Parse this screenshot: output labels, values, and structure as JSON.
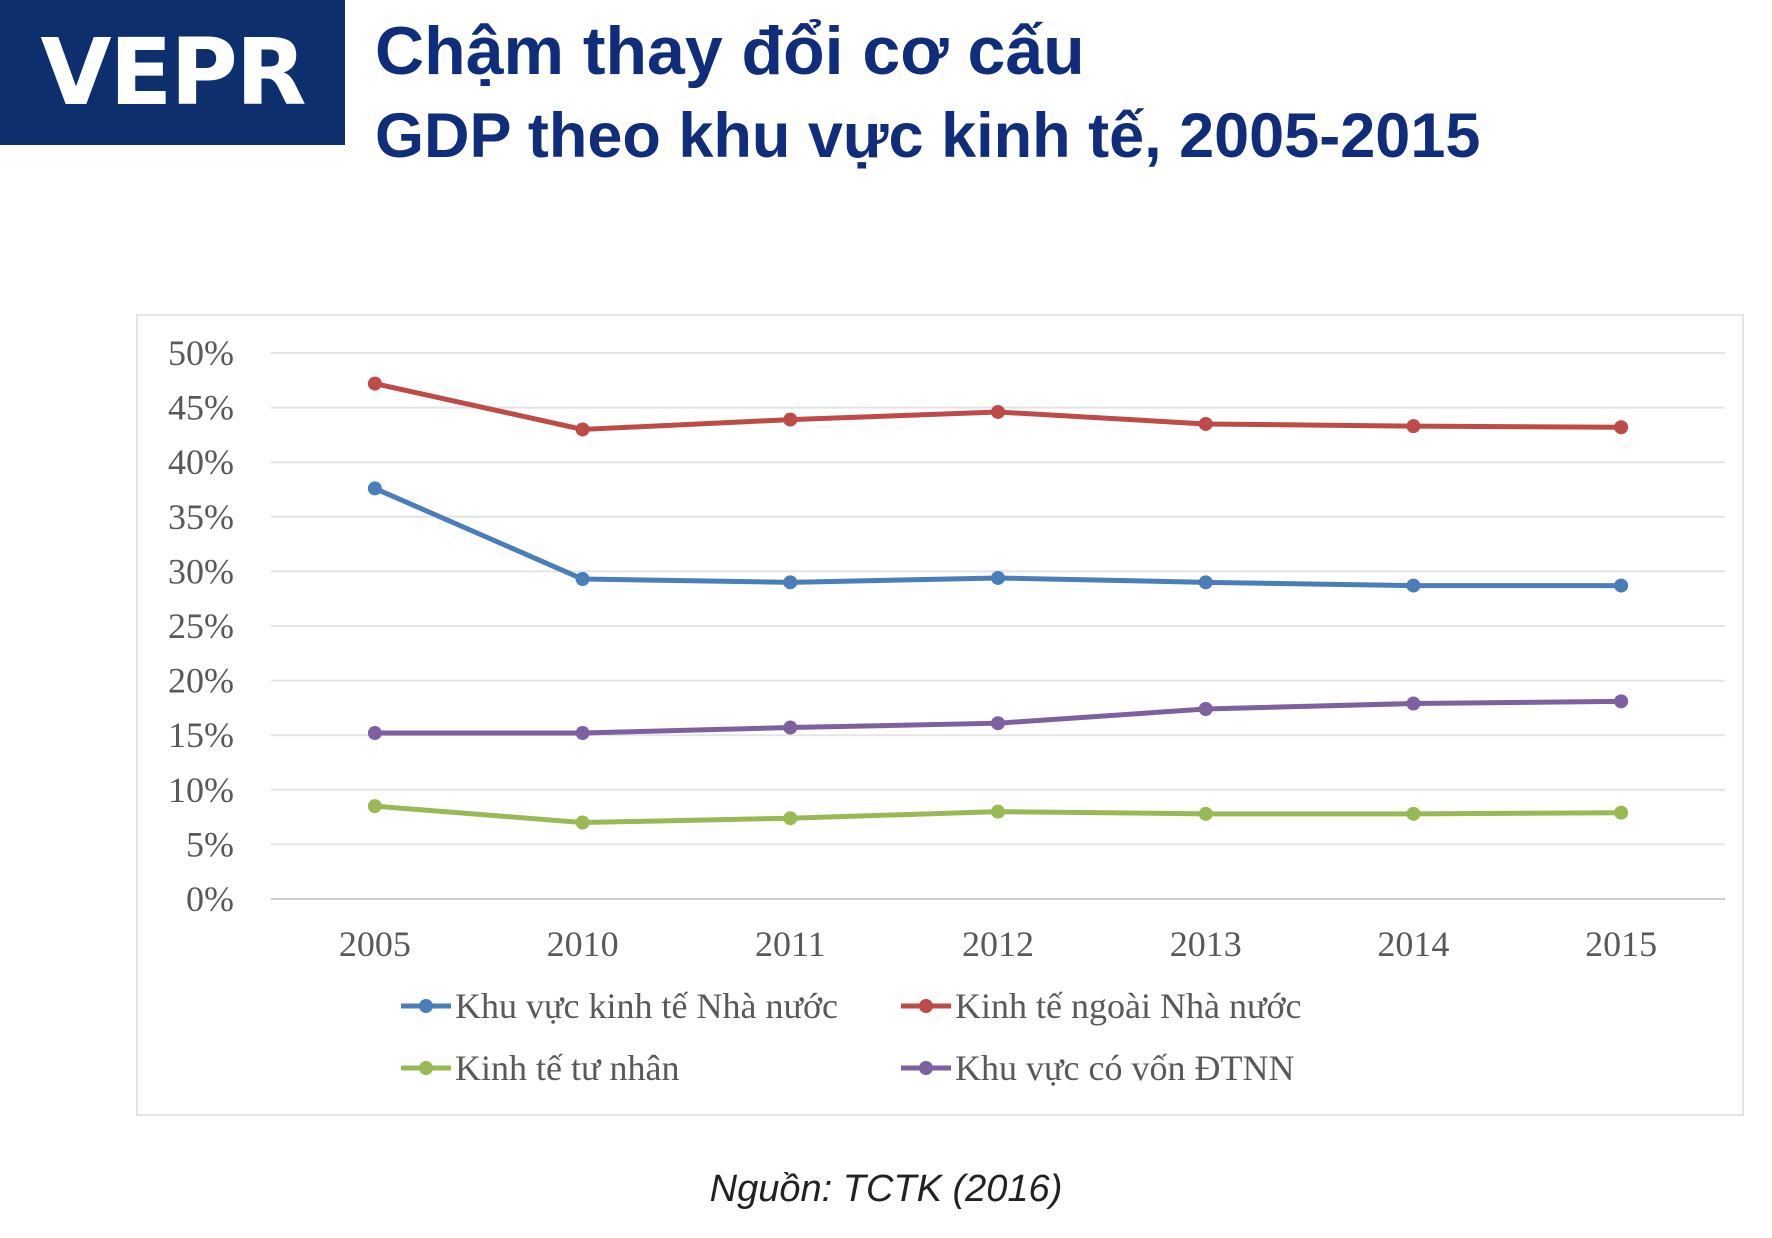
{
  "logo": {
    "text": "VEPR",
    "background": "#0d2f6e"
  },
  "header": {
    "title": "Chậm thay đổi cơ cấu",
    "subtitle": "GDP theo khu vực kinh tế, 2005-2015"
  },
  "source": "Nguồn: TCTK (2016)",
  "chart_data": {
    "type": "line",
    "title": "",
    "xlabel": "",
    "ylabel": "",
    "x": [
      "2005",
      "2010",
      "2011",
      "2012",
      "2013",
      "2014",
      "2015"
    ],
    "ylim": [
      0,
      50
    ],
    "yticks": [
      "0%",
      "5%",
      "10%",
      "15%",
      "20%",
      "25%",
      "30%",
      "35%",
      "40%",
      "45%",
      "50%"
    ],
    "grid": true,
    "legend_position": "bottom",
    "series": [
      {
        "name": "Khu vực kinh tế Nhà nước",
        "color": "#4a7ebb",
        "values": [
          37.6,
          29.3,
          29.0,
          29.4,
          29.0,
          28.7,
          28.7
        ]
      },
      {
        "name": "Kinh tế ngoài Nhà nước",
        "color": "#be4b48",
        "values": [
          47.2,
          43.0,
          43.9,
          44.6,
          43.5,
          43.3,
          43.2
        ]
      },
      {
        "name": "Kinh tế tư nhân",
        "color": "#98b954",
        "values": [
          8.5,
          7.0,
          7.4,
          8.0,
          7.8,
          7.8,
          7.9
        ]
      },
      {
        "name": "Khu vực có vốn ĐTNN",
        "color": "#7d60a0",
        "values": [
          15.2,
          15.2,
          15.7,
          16.1,
          17.4,
          17.9,
          18.1
        ]
      }
    ]
  }
}
